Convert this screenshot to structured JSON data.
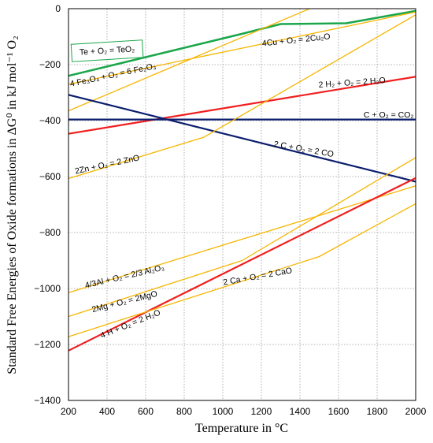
{
  "chart_data": {
    "type": "line",
    "title": "",
    "xlabel": "Temperature in °C",
    "ylabel": "Standard Free Energies of Oxide formations in ΔG⁰ in kJ mol⁻¹ O₂",
    "xlim": [
      200,
      2000
    ],
    "ylim": [
      -1400,
      0
    ],
    "xticks": [
      200,
      400,
      600,
      800,
      1000,
      1200,
      1400,
      1600,
      1800,
      2000
    ],
    "yticks": [
      0,
      -200,
      -400,
      -600,
      -800,
      -1000,
      -1200,
      -1400
    ],
    "grid": "dotted",
    "colors": {
      "green": "#1aa64a",
      "orange": "#f7b500",
      "red": "#f01e1e",
      "navy": "#0b1e6e"
    },
    "series": [
      {
        "name": "Te + O₂ = TeO₂",
        "color": "green",
        "width": 2.5,
        "x": [
          200,
          1100,
          1300,
          1640,
          2000
        ],
        "y": [
          -240,
          -90,
          -55,
          -52,
          -8
        ]
      },
      {
        "name": "4Cu + O₂ = 2Cu₂O",
        "color": "orange",
        "width": 1.3,
        "x": [
          200,
          2000
        ],
        "y": [
          -270,
          -12
        ]
      },
      {
        "name": "4 Fe₃O₄ + O₂ = 6 Fe₂O₃",
        "color": "orange",
        "width": 1.3,
        "x": [
          200,
          1450
        ],
        "y": [
          -365,
          0
        ]
      },
      {
        "name": "2 H₂ + O₂ = 2 H₂O",
        "color": "red",
        "width": 2.2,
        "x": [
          200,
          2000
        ],
        "y": [
          -447,
          -243
        ]
      },
      {
        "name": "C + O₂ = CO₂",
        "color": "navy",
        "width": 2.2,
        "x": [
          200,
          2000
        ],
        "y": [
          -396,
          -396
        ]
      },
      {
        "name": "2 C + O₂ = 2 CO",
        "color": "navy",
        "width": 2.2,
        "x": [
          200,
          2000
        ],
        "y": [
          -308,
          -618
        ]
      },
      {
        "name": "2Zn + O₂ = 2 ZnO",
        "color": "orange",
        "width": 1.3,
        "x": [
          200,
          900,
          2000
        ],
        "y": [
          -607,
          -460,
          -22
        ]
      },
      {
        "name": "4/3Al + O₂ = 2/3 Al₂O₃",
        "color": "orange",
        "width": 1.3,
        "x": [
          200,
          2000
        ],
        "y": [
          -1015,
          -633
        ]
      },
      {
        "name": "2Mg + O₂ = 2MgO",
        "color": "orange",
        "width": 1.3,
        "x": [
          200,
          1100,
          2000
        ],
        "y": [
          -1100,
          -900,
          -532
        ]
      },
      {
        "name": "4 H + O₂ = 2 H₂O",
        "color": "red",
        "width": 2.2,
        "x": [
          200,
          2000
        ],
        "y": [
          -1222,
          -605
        ]
      },
      {
        "name": "2 Ca + O₂ = 2 CaO",
        "color": "orange",
        "width": 1.3,
        "x": [
          200,
          1500,
          2000
        ],
        "y": [
          -1172,
          -886,
          -697
        ]
      }
    ],
    "annotations": [
      {
        "text": "Te + O₂ = TeO₂",
        "x": 400,
        "y": -148,
        "angle": -3.5,
        "boxed": true
      },
      {
        "text": "4Cu + O₂ = 2Cu₂O",
        "x": 1380,
        "y": -110,
        "angle": -6
      },
      {
        "text": "4 Fe₃O₄ + O₂ = 6 Fe₂O₃",
        "x": 430,
        "y": -235,
        "angle": -12
      },
      {
        "text": "2 H₂ + O₂ = 2 H₂O",
        "x": 1670,
        "y": -262,
        "angle": -4
      },
      {
        "text": "C + O₂ = CO₂",
        "x": 1860,
        "y": -378,
        "angle": 0
      },
      {
        "text": "2 C + O₂ = 2 CO",
        "x": 1420,
        "y": -500,
        "angle": 10
      },
      {
        "text": "2Zn + O₂ = 2 ZnO",
        "x": 400,
        "y": -555,
        "angle": -12
      },
      {
        "text": "4/3Al + O₂ = 2/3 Al₂O₃",
        "x": 490,
        "y": -955,
        "angle": -13
      },
      {
        "text": "2Mg + O₂ = 2MgO",
        "x": 490,
        "y": -1045,
        "angle": -14
      },
      {
        "text": "4 H + O₂ = 2 H₂O",
        "x": 520,
        "y": -1125,
        "angle": -22
      },
      {
        "text": "2 Ca + O₂ = 2 CaO",
        "x": 1180,
        "y": -955,
        "angle": -10
      }
    ]
  }
}
